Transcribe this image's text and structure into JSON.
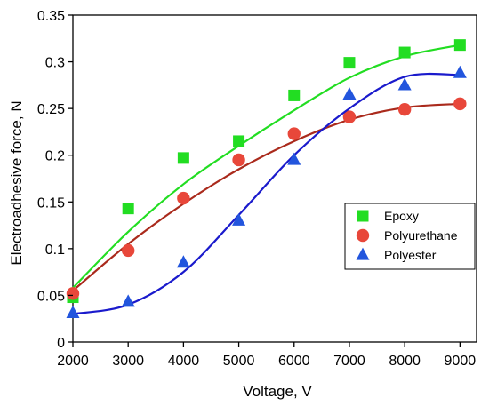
{
  "chart_data": {
    "type": "scatter",
    "title": "",
    "xlabel": "Voltage, V",
    "ylabel": "Electroadhesive force, N",
    "xlim": [
      2000,
      9300
    ],
    "ylim": [
      0,
      0.35
    ],
    "xticks": [
      2000,
      3000,
      4000,
      5000,
      6000,
      7000,
      8000,
      9000
    ],
    "yticks": [
      0,
      0.05,
      0.1,
      0.15,
      0.2,
      0.25,
      0.3,
      0.35
    ],
    "xtick_labels": [
      "2000",
      "3000",
      "4000",
      "5000",
      "6000",
      "7000",
      "8000",
      "9000"
    ],
    "ytick_labels": [
      "0",
      "0.05",
      "0.1",
      "0.15",
      "0.2",
      "0.25",
      "0.3",
      "0.35"
    ],
    "grid": false,
    "legend_position": "center-right",
    "series": [
      {
        "name": "Epoxy",
        "marker": "square",
        "color": "#22dd22",
        "line_color": "#22dd22",
        "x": [
          2000,
          3000,
          4000,
          5000,
          6000,
          7000,
          8000,
          9000
        ],
        "y": [
          0.048,
          0.143,
          0.197,
          0.215,
          0.264,
          0.299,
          0.31,
          0.318
        ],
        "fit_y": [
          0.058,
          0.118,
          0.169,
          0.21,
          0.248,
          0.283,
          0.306,
          0.318
        ]
      },
      {
        "name": "Polyurethane",
        "marker": "circle",
        "color": "#e8473a",
        "line_color": "#aa2a1c",
        "x": [
          2000,
          3000,
          4000,
          5000,
          6000,
          7000,
          8000,
          9000
        ],
        "y": [
          0.052,
          0.098,
          0.154,
          0.195,
          0.223,
          0.241,
          0.249,
          0.255
        ],
        "fit_y": [
          0.055,
          0.105,
          0.148,
          0.185,
          0.215,
          0.238,
          0.251,
          0.255
        ]
      },
      {
        "name": "Polyester",
        "marker": "triangle",
        "color": "#2255dd",
        "line_color": "#1a1acc",
        "x": [
          2000,
          3000,
          4000,
          5000,
          6000,
          7000,
          8000,
          9000
        ],
        "y": [
          0.031,
          0.043,
          0.085,
          0.13,
          0.195,
          0.265,
          0.275,
          0.288
        ],
        "fit_y": [
          0.03,
          0.04,
          0.075,
          0.136,
          0.2,
          0.25,
          0.284,
          0.286
        ]
      }
    ]
  }
}
